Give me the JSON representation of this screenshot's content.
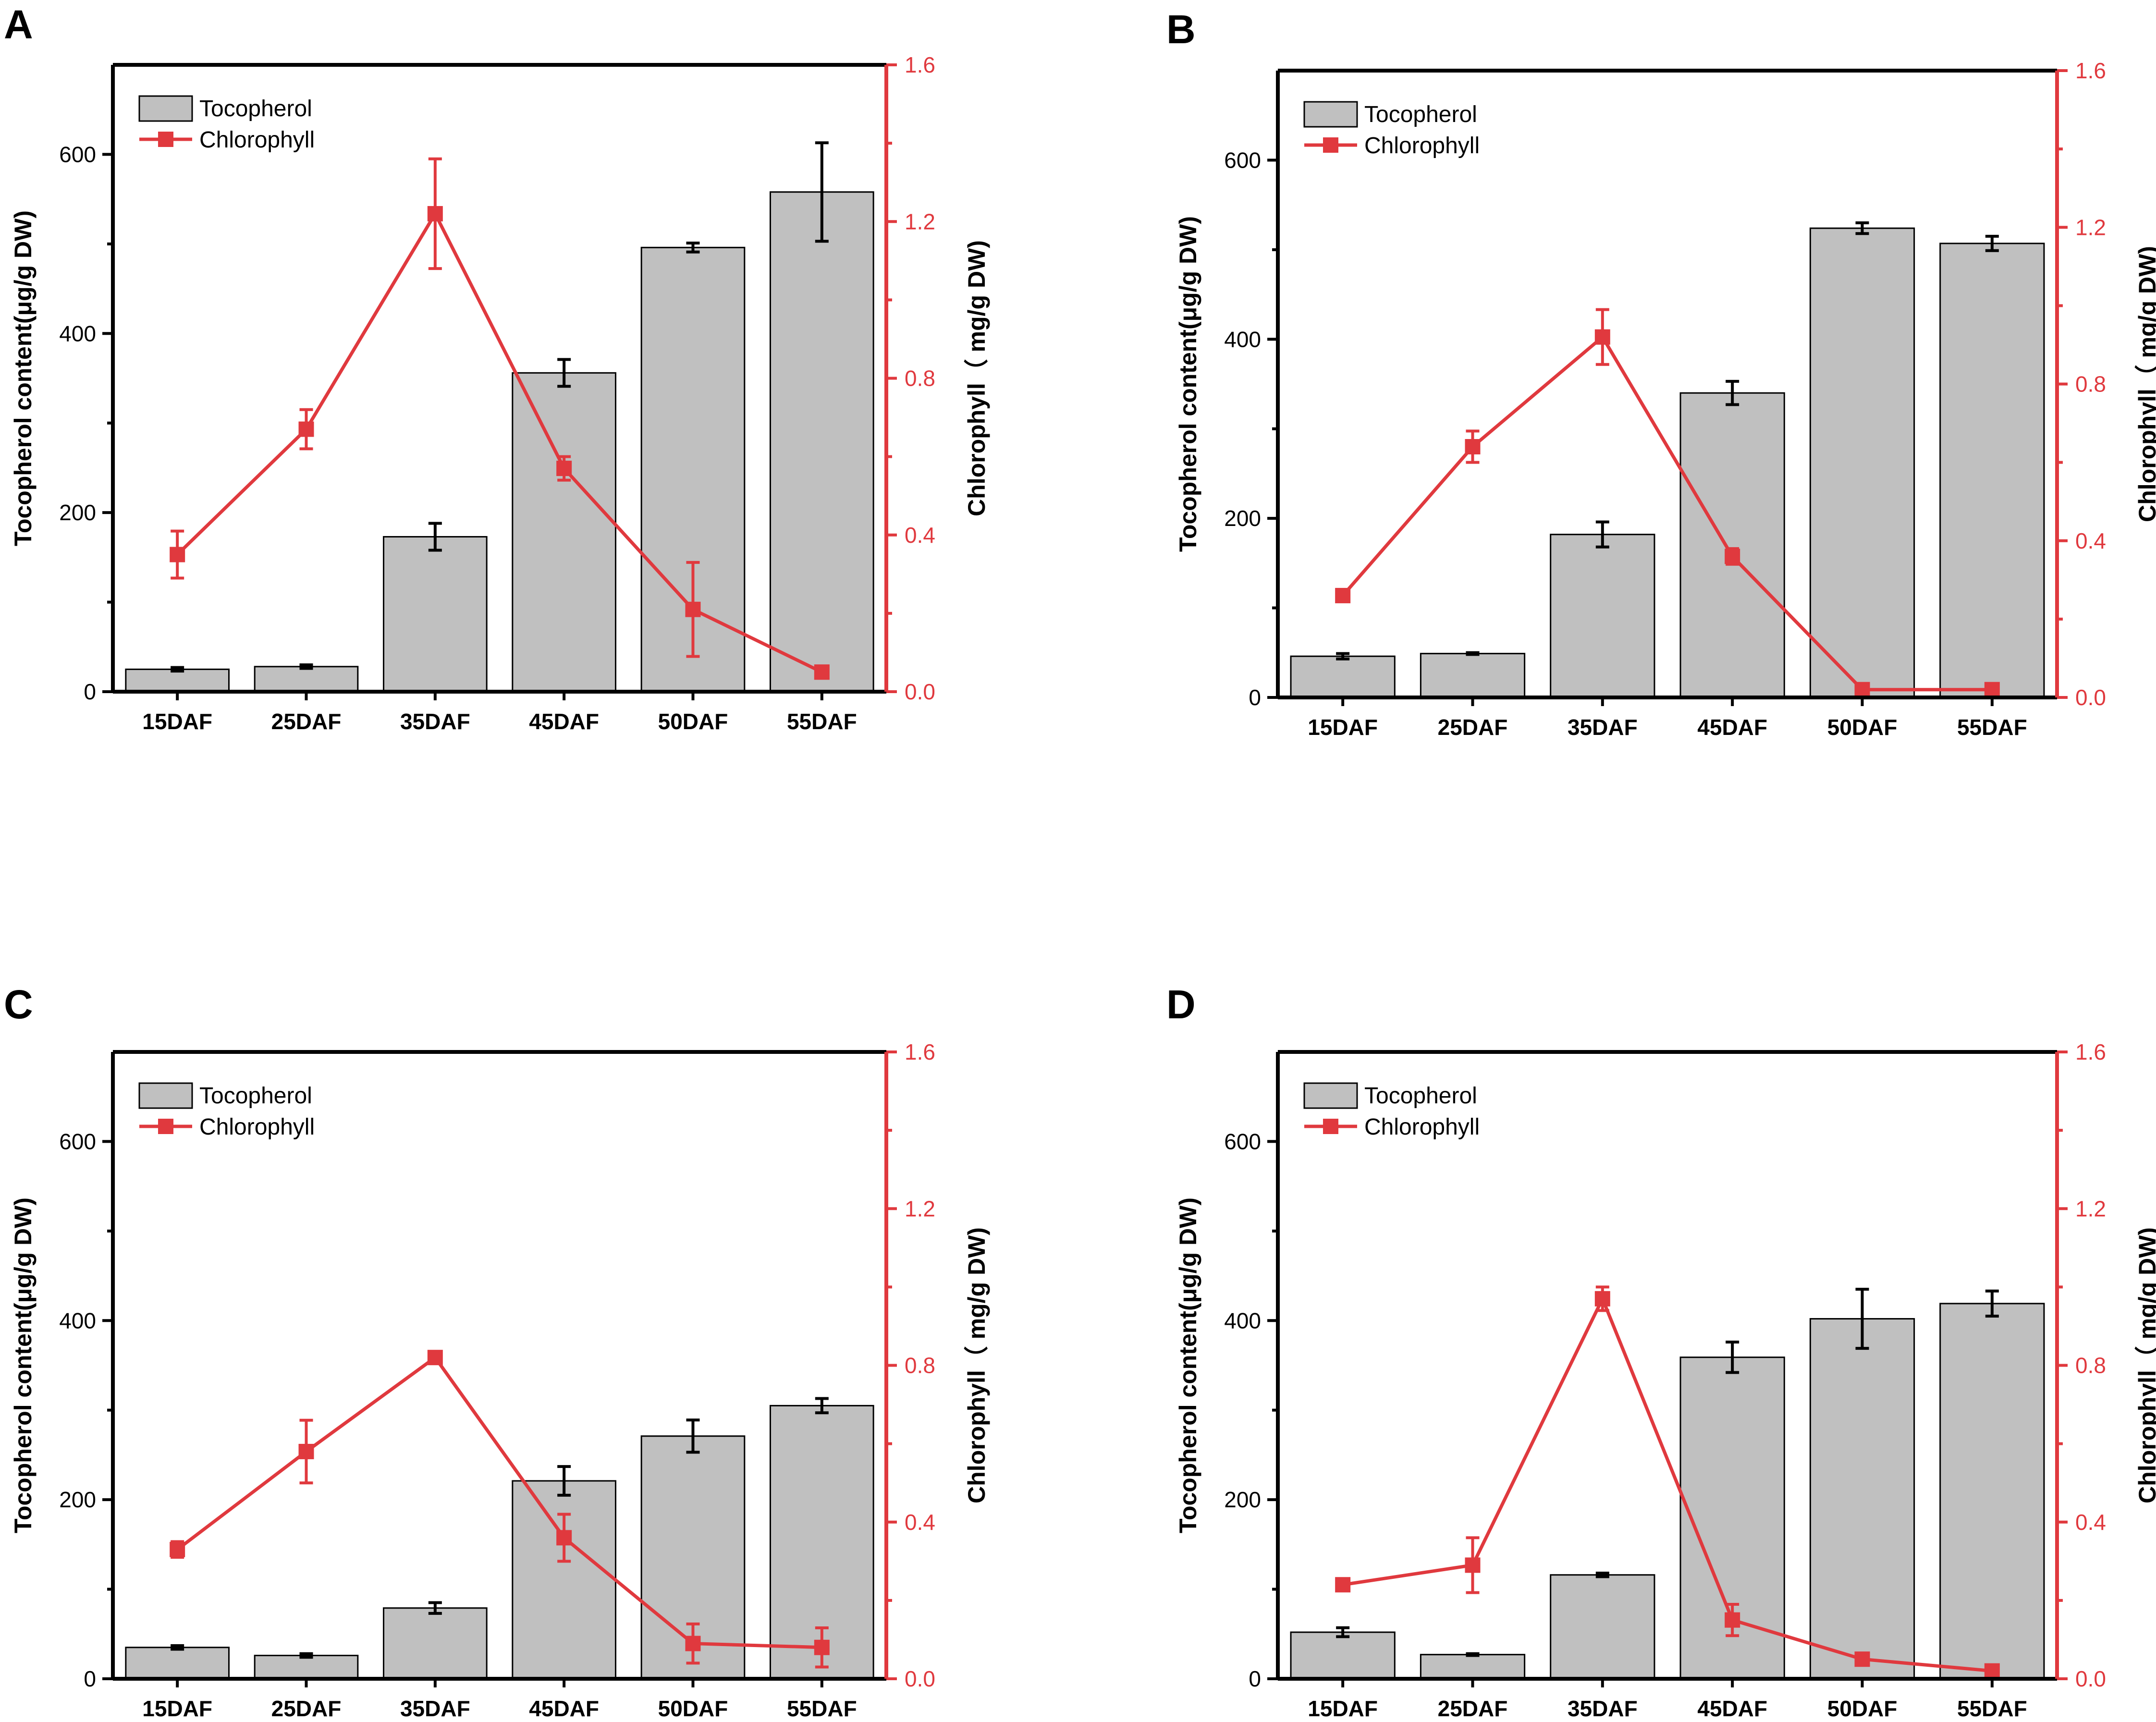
{
  "colors": {
    "bar_fill": "#c0c0c0",
    "bar_stroke": "#000000",
    "line": "#e0393e",
    "axis_left": "#000000",
    "axis_right": "#e0393e"
  },
  "shared": {
    "categories": [
      "15DAF",
      "25DAF",
      "35DAF",
      "45DAF",
      "50DAF",
      "55DAF"
    ],
    "left_ticks": [
      "0",
      "200",
      "400",
      "600"
    ],
    "right_ticks": [
      "0.0",
      "0.4",
      "0.8",
      "1.2",
      "1.6"
    ],
    "ylabel_left": "Tocopherol content(μg/g DW)",
    "ylabel_right": "Chlorophyll（ mg/g DW)",
    "legend_bar": "Tocopherol",
    "legend_line": "Chlorophyll"
  },
  "chart_data": [
    {
      "panel": "A",
      "type": "bar+line",
      "categories": [
        "15DAF",
        "25DAF",
        "35DAF",
        "45DAF",
        "50DAF",
        "55DAF"
      ],
      "ylim_left": [
        0,
        700
      ],
      "ylim_right": [
        0,
        1.6
      ],
      "series": [
        {
          "name": "Tocopherol",
          "axis": "left",
          "kind": "bar",
          "values": [
            25,
            28,
            173,
            356,
            496,
            558
          ],
          "errors": [
            2,
            2,
            15,
            15,
            5,
            55
          ]
        },
        {
          "name": "Chlorophyll",
          "axis": "right",
          "kind": "line",
          "values": [
            0.35,
            0.67,
            1.22,
            0.57,
            0.21,
            0.05
          ],
          "errors": [
            0.06,
            0.05,
            0.14,
            0.03,
            0.12,
            0.01
          ]
        }
      ]
    },
    {
      "panel": "B",
      "type": "bar+line",
      "categories": [
        "15DAF",
        "25DAF",
        "35DAF",
        "45DAF",
        "50DAF",
        "55DAF"
      ],
      "ylim_left": [
        0,
        700
      ],
      "ylim_right": [
        0,
        1.6
      ],
      "series": [
        {
          "name": "Tocopherol",
          "axis": "left",
          "kind": "bar",
          "values": [
            46,
            49,
            182,
            340,
            524,
            507
          ],
          "errors": [
            3,
            1,
            14,
            13,
            6,
            8
          ]
        },
        {
          "name": "Chlorophyll",
          "axis": "right",
          "kind": "line",
          "values": [
            0.26,
            0.64,
            0.92,
            0.36,
            0.02,
            0.02
          ],
          "errors": [
            0.01,
            0.04,
            0.07,
            0.02,
            0.01,
            0.01
          ]
        }
      ]
    },
    {
      "panel": "C",
      "type": "bar+line",
      "categories": [
        "15DAF",
        "25DAF",
        "35DAF",
        "45DAF",
        "50DAF",
        "55DAF"
      ],
      "ylim_left": [
        0,
        700
      ],
      "ylim_right": [
        0,
        1.6
      ],
      "series": [
        {
          "name": "Tocopherol",
          "axis": "left",
          "kind": "bar",
          "values": [
            35,
            26,
            79,
            221,
            271,
            305
          ],
          "errors": [
            2,
            2,
            6,
            16,
            18,
            8
          ]
        },
        {
          "name": "Chlorophyll",
          "axis": "right",
          "kind": "line",
          "values": [
            0.33,
            0.58,
            0.82,
            0.36,
            0.09,
            0.08
          ],
          "errors": [
            0.02,
            0.08,
            0.01,
            0.06,
            0.05,
            0.05
          ]
        }
      ]
    },
    {
      "panel": "D",
      "type": "bar+line",
      "categories": [
        "15DAF",
        "25DAF",
        "35DAF",
        "45DAF",
        "50DAF",
        "55DAF"
      ],
      "ylim_left": [
        0,
        700
      ],
      "ylim_right": [
        0,
        1.6
      ],
      "series": [
        {
          "name": "Tocopherol",
          "axis": "left",
          "kind": "bar",
          "values": [
            52,
            27,
            116,
            359,
            402,
            419
          ],
          "errors": [
            5,
            1,
            2,
            17,
            33,
            14
          ]
        },
        {
          "name": "Chlorophyll",
          "axis": "right",
          "kind": "line",
          "values": [
            0.24,
            0.29,
            0.97,
            0.15,
            0.05,
            0.02
          ],
          "errors": [
            0.01,
            0.07,
            0.03,
            0.04,
            0.01,
            0.01
          ]
        }
      ]
    }
  ]
}
